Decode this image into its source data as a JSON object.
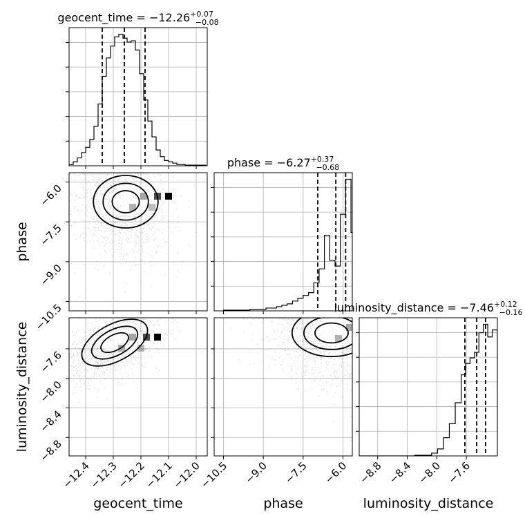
{
  "chart_data": {
    "type": "corner",
    "parameters": [
      {
        "name": "geocent_time",
        "title": {
          "label": "geocent_time",
          "median": "−12.26",
          "plus": "+0.07",
          "minus": "−0.08"
        },
        "range": [
          -12.46,
          -11.96
        ],
        "ticks": [
          -12.4,
          -12.3,
          -12.2,
          -12.1,
          -12.0
        ],
        "tick_labels": [
          "−12.4",
          "−12.3",
          "−12.2",
          "−12.1",
          "−12.0"
        ],
        "quantiles": [
          -12.34,
          -12.26,
          -12.185
        ],
        "histogram": {
          "bin_edges": [
            -12.46,
            -12.445,
            -12.43,
            -12.415,
            -12.4,
            -12.385,
            -12.37,
            -12.355,
            -12.34,
            -12.325,
            -12.31,
            -12.295,
            -12.28,
            -12.265,
            -12.25,
            -12.235,
            -12.22,
            -12.205,
            -12.19,
            -12.175,
            -12.16,
            -12.145,
            -12.13,
            -12.115,
            -12.1,
            -12.085,
            -12.07,
            -12.055,
            -12.04,
            -12.025,
            -12.01,
            -11.995,
            -11.98,
            -11.965
          ],
          "counts": [
            1,
            3,
            6,
            10,
            14,
            20,
            30,
            47,
            68,
            82,
            91,
            98,
            100,
            97,
            94,
            95,
            88,
            70,
            50,
            34,
            22,
            12,
            7,
            4,
            3,
            2,
            1,
            1,
            0.5,
            0.5,
            0.5,
            0.5,
            0.5
          ]
        }
      },
      {
        "name": "phase",
        "title": {
          "label": "phase",
          "median": "−6.27",
          "plus": "+0.37",
          "minus": "−0.68"
        },
        "range": [
          -10.85,
          -5.65
        ],
        "ticks": [
          -10.5,
          -9.0,
          -7.5,
          -6.0
        ],
        "tick_labels": [
          "−10.5",
          "−9.0",
          "−7.5",
          "−6.0"
        ],
        "quantiles": [
          -6.95,
          -6.27,
          -5.9
        ],
        "histogram": {
          "bin_edges": [
            -10.5,
            -10.3,
            -10.1,
            -9.9,
            -9.7,
            -9.5,
            -9.3,
            -9.1,
            -8.9,
            -8.7,
            -8.5,
            -8.3,
            -8.1,
            -7.9,
            -7.7,
            -7.5,
            -7.3,
            -7.1,
            -6.9,
            -6.7,
            -6.5,
            -6.3,
            -6.1,
            -5.9,
            -5.7,
            -5.65
          ],
          "counts": [
            0.5,
            0.5,
            0.5,
            0.5,
            0.5,
            1,
            1,
            1,
            2,
            2,
            3,
            4,
            5,
            7,
            9,
            11,
            13,
            20,
            30,
            54,
            36,
            32,
            69,
            94,
            56
          ]
        }
      },
      {
        "name": "luminosity_distance",
        "title": {
          "label": "luminosity_distance",
          "median": "−7.46",
          "plus": "+0.12",
          "minus": "−0.16"
        },
        "range": [
          -9.05,
          -7.18
        ],
        "ticks": [
          -8.8,
          -8.4,
          -8.0,
          -7.6
        ],
        "tick_labels": [
          "−8.8",
          "−8.4",
          "−8.0",
          "−7.6"
        ],
        "quantiles": [
          -7.62,
          -7.46,
          -7.34
        ],
        "histogram": {
          "bin_edges": [
            -9.05,
            -8.9,
            -8.75,
            -8.6,
            -8.45,
            -8.3,
            -8.15,
            -8.07,
            -7.99,
            -7.91,
            -7.83,
            -7.75,
            -7.67,
            -7.61,
            -7.55,
            -7.49,
            -7.43,
            -7.37,
            -7.31,
            -7.25,
            -7.18
          ],
          "counts": [
            0,
            0,
            0,
            0,
            0,
            0.5,
            0.5,
            2,
            5,
            13,
            23,
            38,
            58,
            66,
            70,
            74,
            88,
            94,
            85,
            90
          ]
        }
      }
    ],
    "panels": [
      {
        "x": "geocent_time",
        "y": "phase",
        "grid": true
      },
      {
        "x": "geocent_time",
        "y": "luminosity_distance",
        "grid": true
      },
      {
        "x": "phase",
        "y": "luminosity_distance",
        "grid": true
      }
    ],
    "axis_labels": {
      "bottom": [
        "geocent_time",
        "phase",
        "luminosity_distance"
      ],
      "left": [
        "phase",
        "luminosity_distance"
      ]
    }
  }
}
